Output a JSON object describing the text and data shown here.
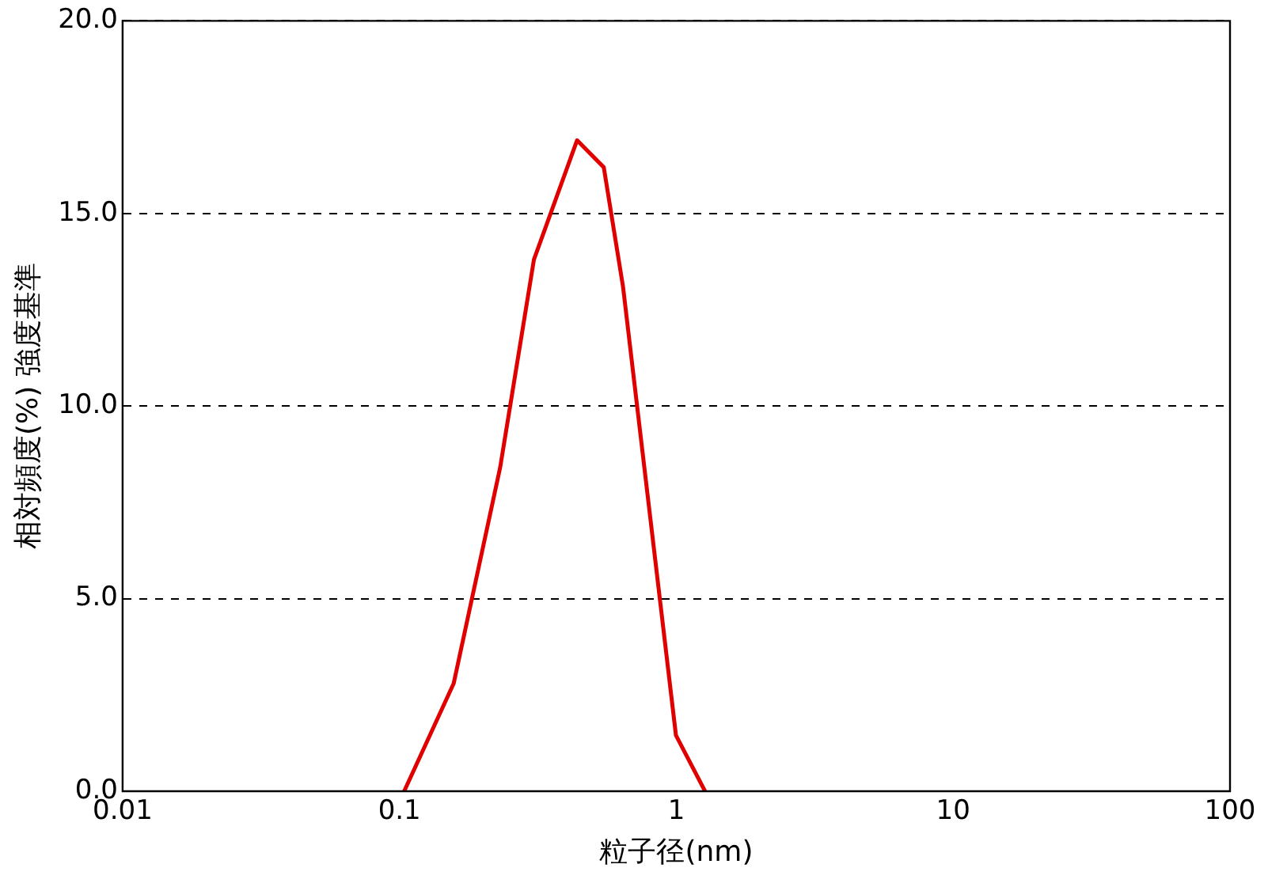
{
  "chart_data": {
    "type": "line",
    "xlabel": "粒子径(nm)",
    "ylabel": "相対頻度(%) 強度基準",
    "x": [
      0.104,
      0.157,
      0.231,
      0.306,
      0.438,
      0.547,
      0.642,
      0.997,
      1.27
    ],
    "series": [
      {
        "color": "#e00000",
        "values": [
          0,
          2.8,
          8.4,
          13.8,
          16.9,
          16.2,
          13.1,
          1.45,
          0
        ]
      }
    ],
    "log": "x",
    "xlim": [
      0.01,
      100
    ],
    "xticks": [
      0.01,
      0.1,
      1,
      10,
      100
    ],
    "ylim": [
      0,
      20
    ],
    "yticks": [
      {
        "value": 0,
        "label": "0.0"
      },
      {
        "value": 5,
        "label": "5.0"
      },
      {
        "value": 10,
        "label": "10.0"
      },
      {
        "value": 15,
        "label": "15.0"
      },
      {
        "value": 20,
        "label": "20.0"
      }
    ],
    "grid": "y",
    "line_style": "solid",
    "marker": "none",
    "legend": false
  }
}
